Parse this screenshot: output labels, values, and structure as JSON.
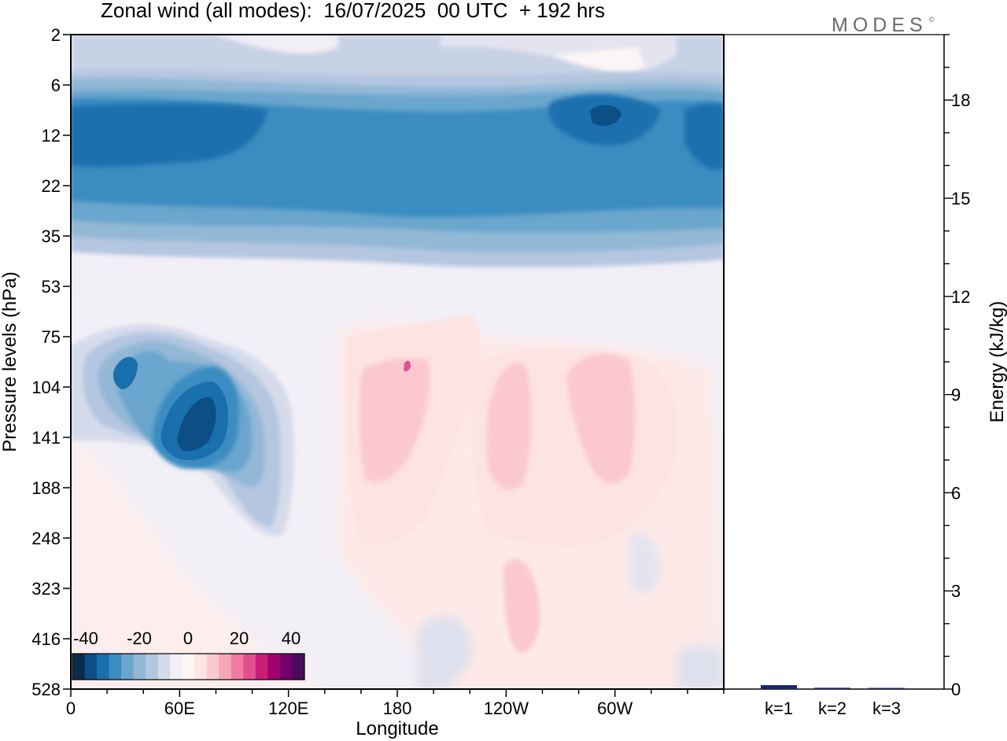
{
  "title": "Zonal wind (all modes):  16/07/2025  00 UTC  + 192 hrs",
  "brand": "MODES",
  "brand_mark": "©",
  "chart_data": [
    {
      "type": "heatmap",
      "title": "Zonal wind (all modes):  16/07/2025  00 UTC  + 192 hrs",
      "xlabel": "Longitude",
      "ylabel": "Pressure levels (hPa)",
      "x_ticks": [
        "0",
        "60E",
        "120E",
        "180",
        "120W",
        "60W"
      ],
      "x_tick_values": [
        0,
        60,
        120,
        180,
        240,
        300
      ],
      "xlim": [
        0,
        360
      ],
      "y_ticks": [
        "2",
        "6",
        "12",
        "22",
        "35",
        "53",
        "75",
        "104",
        "141",
        "188",
        "248",
        "323",
        "416",
        "528"
      ],
      "y_reversed": true,
      "colorbar": {
        "labels": [
          "-40",
          "-20",
          "0",
          "20",
          "40"
        ],
        "colors": [
          "#0d2a4a",
          "#0b4f86",
          "#1a6fad",
          "#3a8cc1",
          "#6aa6cd",
          "#92b8d6",
          "#b4c6e0",
          "#d5dbeb",
          "#f1eef6",
          "#fdf5f4",
          "#fde3e1",
          "#fbc9cd",
          "#f7a7b7",
          "#f179a2",
          "#e2508f",
          "#c91d7a",
          "#a0006d",
          "#72006a",
          "#4b0a5c"
        ]
      },
      "features": [
        {
          "name": "stratospheric easterly band",
          "lon": [
            0,
            360
          ],
          "pressure": [
            6,
            35
          ],
          "value": -30
        },
        {
          "name": "upper-level easterly jet core",
          "lon": [
            55,
            90
          ],
          "pressure": [
            104,
            188
          ],
          "value": -38
        },
        {
          "name": "westerly maximum",
          "lon": [
            175,
            200
          ],
          "pressure": [
            90,
            160
          ],
          "value": 20
        },
        {
          "name": "westerly maximum",
          "lon": [
            230,
            260
          ],
          "pressure": [
            110,
            188
          ],
          "value": 15
        },
        {
          "name": "westerly maximum",
          "lon": [
            275,
            310
          ],
          "pressure": [
            104,
            188
          ],
          "value": 15
        }
      ]
    },
    {
      "type": "bar",
      "categories": [
        "k=1",
        "k=2",
        "k=3"
      ],
      "values": [
        0.12,
        0.04,
        0.03
      ],
      "ylabel": "Energy (kJ/kg)",
      "ylim": [
        0,
        20
      ],
      "y_ticks": [
        "0",
        "3",
        "6",
        "9",
        "12",
        "15",
        "18"
      ],
      "y_tick_values": [
        0,
        3,
        6,
        9,
        12,
        15,
        18
      ],
      "color": "#1a237e"
    }
  ]
}
